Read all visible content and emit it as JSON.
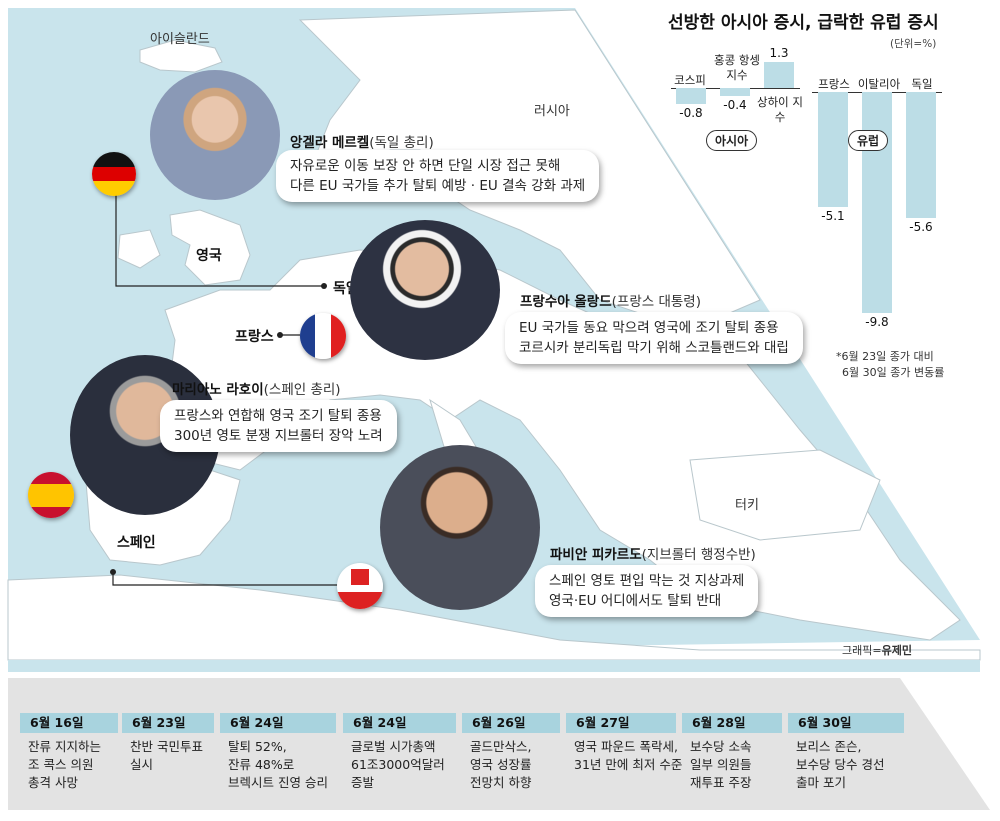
{
  "map": {
    "labels": {
      "iceland": "아이슬란드",
      "russia": "러시아",
      "uk": "영국",
      "germany": "독일",
      "france": "프랑스",
      "spain": "스페인",
      "turkey": "터키"
    },
    "colors": {
      "sea": "#c9e4ec",
      "land": "#ffffff",
      "border": "#b9c7cc"
    }
  },
  "people": [
    {
      "name": "앙겔라 메르켈",
      "role": "(독일 총리)",
      "quote": [
        "자유로운 이동 보장 안 하면 단일 시장 접근 못해",
        "다른 EU 국가들 추가 탈퇴 예방 · EU 결속 강화 과제"
      ],
      "flag": "germany-flag"
    },
    {
      "name": "프랑수아 올랑드",
      "role": "(프랑스 대통령)",
      "quote": [
        "EU 국가들 동요 막으려 영국에 조기 탈퇴 종용",
        "코르시카 분리독립 막기 위해 스코틀랜드와 대립"
      ],
      "flag": "france-flag"
    },
    {
      "name": "마리아노 라호이",
      "role": "(스페인 총리)",
      "quote": [
        "프랑스와 연합해 영국 조기 탈퇴 종용",
        "300년 영토 분쟁 지브롤터 장악 노려"
      ],
      "flag": "spain-flag"
    },
    {
      "name": "파비안 피카르도",
      "role": "(지브롤터 행정수반)",
      "quote": [
        "스페인 영토 편입 막는 것 지상과제",
        "영국·EU 어디에서도 탈퇴 반대"
      ],
      "flag": "gibraltar-flag"
    }
  ],
  "chart": {
    "title": "선방한 아시아 증시, 급락한 유럽 증시",
    "unit": "(단위=%)",
    "asia_label": "아시아",
    "europe_label": "유럽",
    "note": [
      "*6월 23일 종가 대비",
      "6월 30일 종가 변동률"
    ],
    "bar_color": "#bcdde6"
  },
  "chart_data": {
    "type": "bar",
    "title": "선방한 아시아 증시, 급락한 유럽 증시",
    "ylabel": "(단위=%)",
    "groups": [
      {
        "name": "아시아",
        "categories": [
          "코스피",
          "홍콩 항셍 지수",
          "상하이 지수"
        ],
        "values": [
          -0.8,
          -0.4,
          1.3
        ],
        "value_labels": [
          "-0.8",
          "-0.4",
          "1.3"
        ]
      },
      {
        "name": "유럽",
        "categories": [
          "프랑스",
          "이탈리아",
          "독일"
        ],
        "values": [
          -5.1,
          -9.8,
          -5.6
        ],
        "value_labels": [
          "-5.1",
          "-9.8",
          "-5.6"
        ]
      }
    ]
  },
  "credit": {
    "prefix": "그래픽=",
    "author": "유제민"
  },
  "timeline": [
    {
      "date": "6월 16일",
      "text": "잔류 지지하는\n조 콕스 의원\n총격 사망"
    },
    {
      "date": "6월 23일",
      "text": "찬반 국민투표\n실시"
    },
    {
      "date": "6월 24일",
      "text": "탈퇴 52%,\n잔류 48%로\n브렉시트 진영 승리"
    },
    {
      "date": "6월 24일",
      "text": "글로벌 시가총액\n61조3000억달러\n증발"
    },
    {
      "date": "6월 26일",
      "text": "골드만삭스,\n영국 성장률\n전망치 하향"
    },
    {
      "date": "6월 27일",
      "text": "영국 파운드 폭락세,\n31년 만에 최저 수준"
    },
    {
      "date": "6월 28일",
      "text": "보수당 소속\n일부 의원들\n재투표 주장"
    },
    {
      "date": "6월 30일",
      "text": "보리스 존슨,\n보수당 당수 경선\n출마 포기"
    }
  ]
}
